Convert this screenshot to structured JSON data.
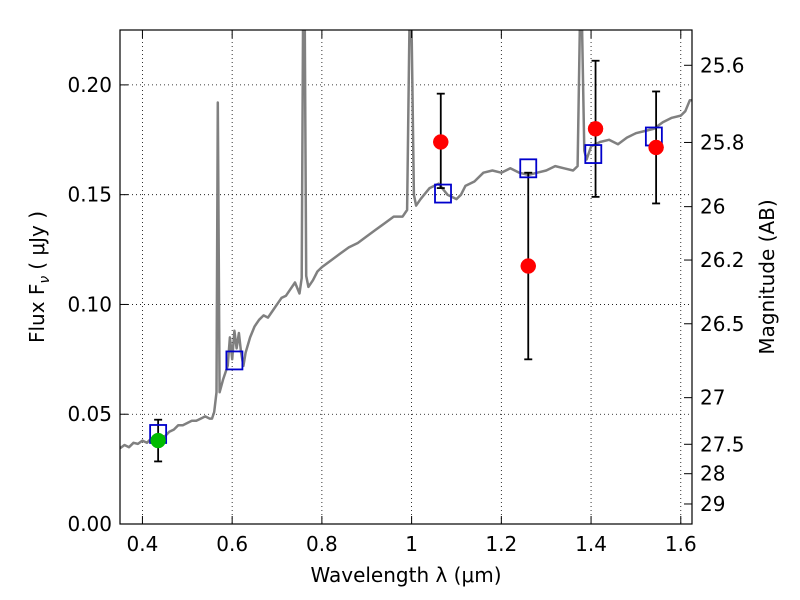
{
  "chart_data": {
    "type": "scatter",
    "xlabel": "Wavelength  λ (μm)",
    "ylabel": "Flux  F",
    "ylabel_sub": "ν",
    "ylabel_unit": "( μJy )",
    "y2label": "Magnitude (AB)",
    "xlim": [
      0.35,
      1.625
    ],
    "ylim": [
      0.0,
      0.225
    ],
    "grid": true,
    "grid_style": "dotted",
    "x_ticks": [
      {
        "value": 0.4,
        "label": "0.4"
      },
      {
        "value": 0.6,
        "label": "0.6"
      },
      {
        "value": 0.8,
        "label": "0.8"
      },
      {
        "value": 1.0,
        "label": "1"
      },
      {
        "value": 1.2,
        "label": "1.2"
      },
      {
        "value": 1.4,
        "label": "1.4"
      },
      {
        "value": 1.6,
        "label": "1.6"
      }
    ],
    "y_ticks": [
      {
        "value": 0.0,
        "label": "0.00"
      },
      {
        "value": 0.05,
        "label": "0.05"
      },
      {
        "value": 0.1,
        "label": "0.10"
      },
      {
        "value": 0.15,
        "label": "0.15"
      },
      {
        "value": 0.2,
        "label": "0.20"
      }
    ],
    "y2_ticks": [
      {
        "value": 25.6,
        "label": "25.6"
      },
      {
        "value": 25.8,
        "label": "25.8"
      },
      {
        "value": 26.0,
        "label": "26"
      },
      {
        "value": 26.2,
        "label": "26.2"
      },
      {
        "value": 26.5,
        "label": "26.5"
      },
      {
        "value": 27.0,
        "label": "27"
      },
      {
        "value": 27.5,
        "label": "27.5"
      },
      {
        "value": 28.0,
        "label": "28"
      },
      {
        "value": 29.0,
        "label": "29"
      }
    ],
    "colors": {
      "spectrum": "#808080",
      "observed": "#ff0000",
      "observed_green": "#00bb00",
      "model_box": "#0000cc",
      "errorbar": "#000000"
    },
    "spectrum": [
      [
        0.35,
        0.0345
      ],
      [
        0.36,
        0.036
      ],
      [
        0.37,
        0.035
      ],
      [
        0.38,
        0.037
      ],
      [
        0.39,
        0.0365
      ],
      [
        0.4,
        0.038
      ],
      [
        0.41,
        0.037
      ],
      [
        0.42,
        0.039
      ],
      [
        0.43,
        0.038
      ],
      [
        0.44,
        0.04
      ],
      [
        0.45,
        0.04
      ],
      [
        0.46,
        0.042
      ],
      [
        0.47,
        0.043
      ],
      [
        0.48,
        0.045
      ],
      [
        0.49,
        0.045
      ],
      [
        0.5,
        0.046
      ],
      [
        0.51,
        0.047
      ],
      [
        0.52,
        0.047
      ],
      [
        0.53,
        0.048
      ],
      [
        0.54,
        0.049
      ],
      [
        0.55,
        0.048
      ],
      [
        0.555,
        0.048
      ],
      [
        0.56,
        0.051
      ],
      [
        0.565,
        0.06
      ],
      [
        0.568,
        0.192
      ],
      [
        0.572,
        0.06
      ],
      [
        0.58,
        0.066
      ],
      [
        0.59,
        0.072
      ],
      [
        0.595,
        0.085
      ],
      [
        0.6,
        0.075
      ],
      [
        0.605,
        0.088
      ],
      [
        0.61,
        0.08
      ],
      [
        0.615,
        0.087
      ],
      [
        0.62,
        0.078
      ],
      [
        0.625,
        0.072
      ],
      [
        0.63,
        0.078
      ],
      [
        0.64,
        0.085
      ],
      [
        0.65,
        0.09
      ],
      [
        0.66,
        0.093
      ],
      [
        0.67,
        0.095
      ],
      [
        0.68,
        0.094
      ],
      [
        0.69,
        0.097
      ],
      [
        0.7,
        0.1
      ],
      [
        0.71,
        0.103
      ],
      [
        0.72,
        0.104
      ],
      [
        0.73,
        0.107
      ],
      [
        0.74,
        0.11
      ],
      [
        0.75,
        0.105
      ],
      [
        0.755,
        0.112
      ],
      [
        0.758,
        0.225
      ],
      [
        0.762,
        0.225
      ],
      [
        0.765,
        0.113
      ],
      [
        0.77,
        0.108
      ],
      [
        0.78,
        0.111
      ],
      [
        0.79,
        0.115
      ],
      [
        0.8,
        0.117
      ],
      [
        0.82,
        0.12
      ],
      [
        0.84,
        0.123
      ],
      [
        0.86,
        0.126
      ],
      [
        0.88,
        0.128
      ],
      [
        0.9,
        0.131
      ],
      [
        0.92,
        0.134
      ],
      [
        0.94,
        0.137
      ],
      [
        0.96,
        0.14
      ],
      [
        0.98,
        0.14
      ],
      [
        0.99,
        0.143
      ],
      [
        0.995,
        0.225
      ],
      [
        1.0,
        0.225
      ],
      [
        1.005,
        0.15
      ],
      [
        1.01,
        0.145
      ],
      [
        1.02,
        0.148
      ],
      [
        1.04,
        0.153
      ],
      [
        1.06,
        0.155
      ],
      [
        1.08,
        0.15
      ],
      [
        1.1,
        0.148
      ],
      [
        1.11,
        0.15
      ],
      [
        1.12,
        0.154
      ],
      [
        1.14,
        0.156
      ],
      [
        1.16,
        0.16
      ],
      [
        1.18,
        0.161
      ],
      [
        1.2,
        0.16
      ],
      [
        1.22,
        0.162
      ],
      [
        1.24,
        0.16
      ],
      [
        1.26,
        0.159
      ],
      [
        1.28,
        0.16
      ],
      [
        1.3,
        0.161
      ],
      [
        1.32,
        0.163
      ],
      [
        1.34,
        0.162
      ],
      [
        1.36,
        0.161
      ],
      [
        1.37,
        0.163
      ],
      [
        1.375,
        0.225
      ],
      [
        1.38,
        0.225
      ],
      [
        1.385,
        0.17
      ],
      [
        1.39,
        0.166
      ],
      [
        1.4,
        0.172
      ],
      [
        1.42,
        0.174
      ],
      [
        1.44,
        0.175
      ],
      [
        1.46,
        0.173
      ],
      [
        1.48,
        0.176
      ],
      [
        1.5,
        0.178
      ],
      [
        1.52,
        0.179
      ],
      [
        1.54,
        0.18
      ],
      [
        1.56,
        0.183
      ],
      [
        1.58,
        0.185
      ],
      [
        1.6,
        0.186
      ],
      [
        1.61,
        0.188
      ],
      [
        1.62,
        0.193
      ],
      [
        1.625,
        0.193
      ]
    ],
    "observed": [
      {
        "x": 0.435,
        "y": 0.038,
        "yerr_low": 0.0285,
        "yerr_high": 0.0475,
        "color": "observed_green"
      },
      {
        "x": 1.065,
        "y": 0.174,
        "yerr_low": 0.153,
        "yerr_high": 0.196,
        "color": "observed"
      },
      {
        "x": 1.26,
        "y": 0.1175,
        "yerr_low": 0.075,
        "yerr_high": 0.16,
        "color": "observed"
      },
      {
        "x": 1.41,
        "y": 0.18,
        "yerr_low": 0.149,
        "yerr_high": 0.211,
        "color": "observed"
      },
      {
        "x": 1.545,
        "y": 0.1715,
        "yerr_low": 0.146,
        "yerr_high": 0.197,
        "color": "observed"
      }
    ],
    "model_boxes": [
      {
        "x": 0.435,
        "y": 0.041
      },
      {
        "x": 0.605,
        "y": 0.0745
      },
      {
        "x": 1.07,
        "y": 0.1505
      },
      {
        "x": 1.26,
        "y": 0.162
      },
      {
        "x": 1.405,
        "y": 0.1685
      },
      {
        "x": 1.54,
        "y": 0.1765
      }
    ]
  }
}
